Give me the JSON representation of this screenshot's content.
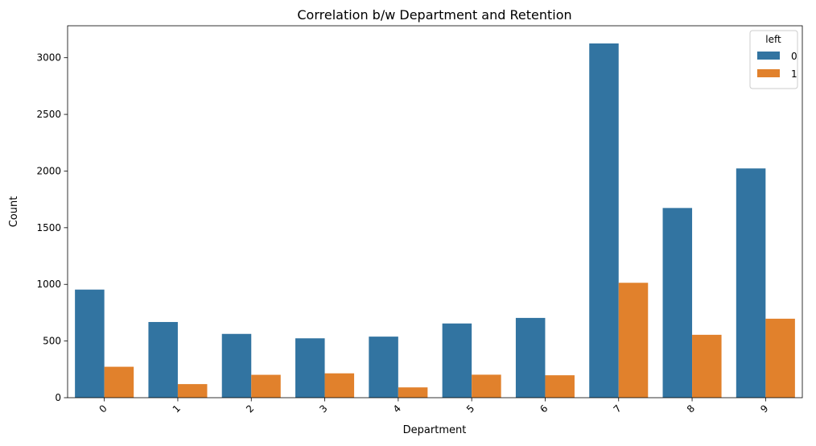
{
  "chart_data": {
    "type": "bar",
    "title": "Correlation b/w Department and Retention",
    "xlabel": "Department",
    "ylabel": "Count",
    "categories": [
      "0",
      "1",
      "2",
      "3",
      "4",
      "5",
      "6",
      "7",
      "8",
      "9"
    ],
    "series": [
      {
        "name": "0",
        "color": "#3274a1",
        "values": [
          954,
          668,
          563,
          524,
          539,
          655,
          704,
          3126,
          1674,
          2023
        ]
      },
      {
        "name": "1",
        "color": "#e1812c",
        "values": [
          273,
          120,
          202,
          215,
          91,
          203,
          198,
          1014,
          555,
          697
        ]
      }
    ],
    "ylim": [
      0,
      3282
    ],
    "yticks": [
      0,
      500,
      1000,
      1500,
      2000,
      2500,
      3000
    ],
    "grid": false,
    "legend": {
      "title": "left",
      "placement": "top-right"
    }
  }
}
